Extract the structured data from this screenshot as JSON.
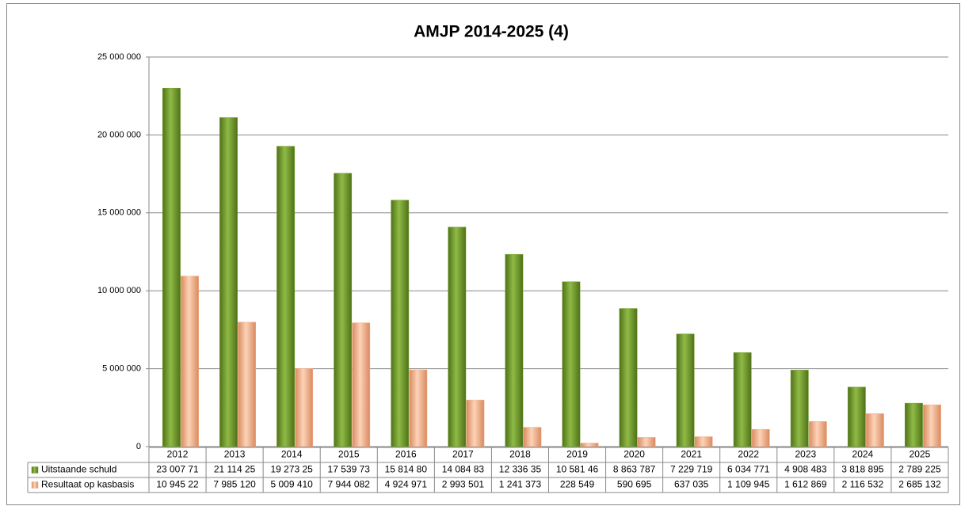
{
  "chart_data": {
    "type": "bar",
    "title": "AMJP 2014-2025 (4)",
    "categories": [
      "2012",
      "2013",
      "2014",
      "2015",
      "2016",
      "2017",
      "2018",
      "2019",
      "2020",
      "2021",
      "2022",
      "2023",
      "2024",
      "2025"
    ],
    "series": [
      {
        "name": "Uitstaande schuld",
        "color": "#76a02c",
        "values": [
          23007710,
          21114250,
          19273250,
          17539730,
          15814800,
          14084830,
          12336350,
          10581460,
          8863787,
          7229719,
          6034771,
          4908483,
          3818895,
          2789225
        ],
        "value_labels": [
          "23 007 71",
          "21 114 25",
          "19 273 25",
          "17 539 73",
          "15 814 80",
          "14 084 83",
          "12 336 35",
          "10 581 46",
          "8 863 787",
          "7 229 719",
          "6 034 771",
          "4 908 483",
          "3 818 895",
          "2 789 225"
        ]
      },
      {
        "name": "Resultaat op kasbasis",
        "color": "#f4b08a",
        "values": [
          10945220,
          7985120,
          5009410,
          7944082,
          4924971,
          2993501,
          1241373,
          228549,
          590695,
          637035,
          1109945,
          1612869,
          2116532,
          2685132
        ],
        "value_labels": [
          "10 945 22",
          "7 985 120",
          "5 009 410",
          "7 944 082",
          "4 924 971",
          "2 993 501",
          "1 241 373",
          "228 549",
          "590 695",
          "637 035",
          "1 109 945",
          "1 612 869",
          "2 116 532",
          "2 685 132"
        ]
      }
    ],
    "ylim": [
      0,
      25000000
    ],
    "yticks": [
      {
        "value": 0,
        "label": "0"
      },
      {
        "value": 5000000,
        "label": "5 000 000"
      },
      {
        "value": 10000000,
        "label": "10 000 000"
      },
      {
        "value": 15000000,
        "label": "15 000 000"
      },
      {
        "value": 20000000,
        "label": "20 000 000"
      },
      {
        "value": 25000000,
        "label": "25 000 000"
      }
    ],
    "grid": true
  }
}
